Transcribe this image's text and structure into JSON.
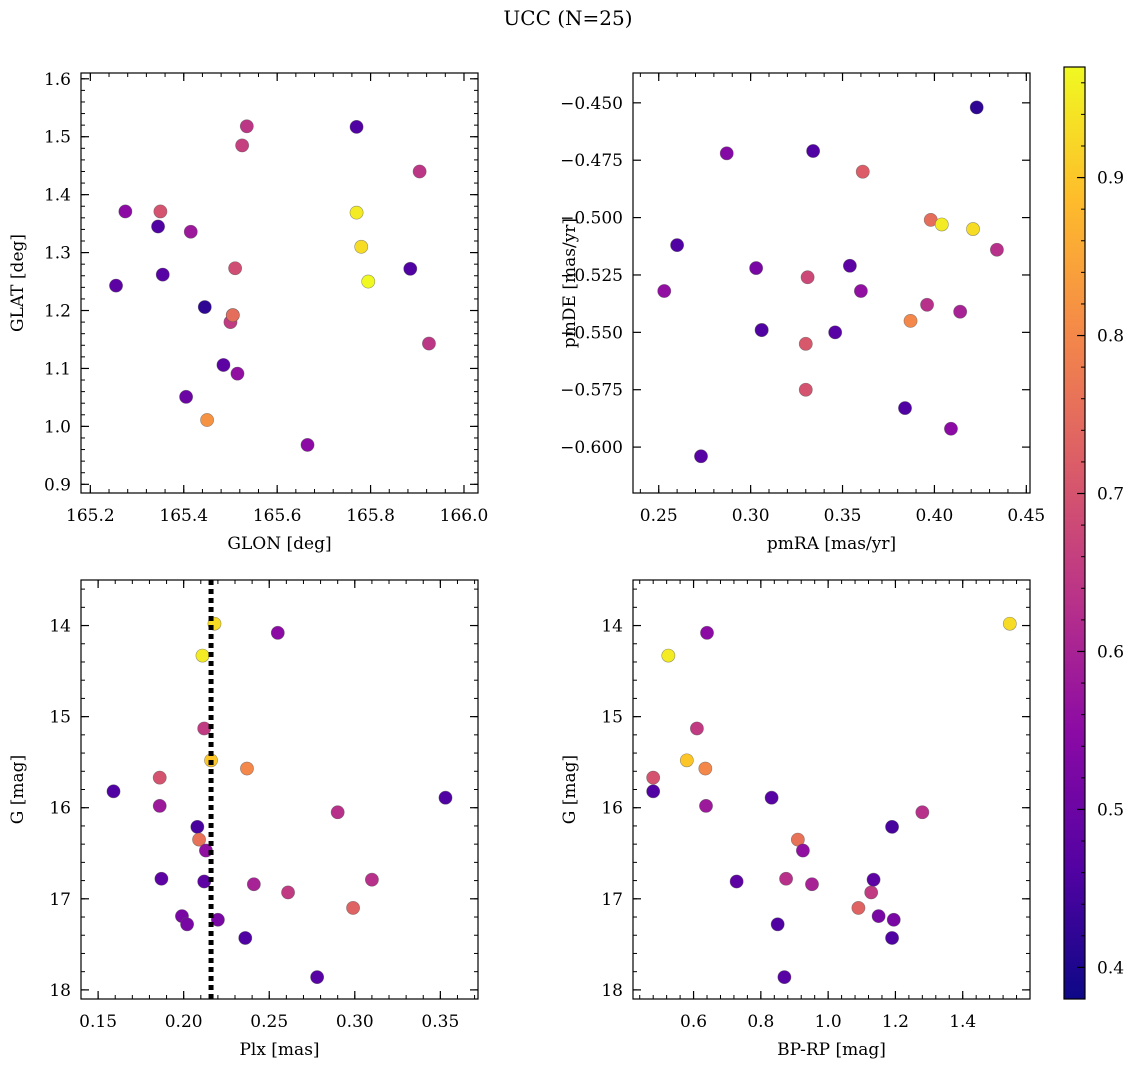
{
  "figure": {
    "title": "UCC (N=25)"
  },
  "colorbar": {
    "colormap": "plasma",
    "range": [
      0.38,
      0.97
    ],
    "ticks": [
      0.4,
      0.5,
      0.6,
      0.7,
      0.8,
      0.9
    ]
  },
  "chart_data": [
    {
      "type": "scatter",
      "xlabel": "GLON [deg]",
      "ylabel": "GLAT [deg]",
      "xlim": [
        165.18,
        166.03
      ],
      "ylim": [
        0.885,
        1.61
      ],
      "xticks": [
        "165.2",
        "165.4",
        "165.6",
        "165.8",
        "166.0"
      ],
      "yticks": [
        "0.9",
        "1.0",
        "1.1",
        "1.2",
        "1.3",
        "1.4",
        "1.5",
        "1.6"
      ],
      "x": [
        165.255,
        165.275,
        165.345,
        165.35,
        165.355,
        165.415,
        165.445,
        165.45,
        165.485,
        165.5,
        165.505,
        165.505,
        165.51,
        165.515,
        165.525,
        165.535,
        165.665,
        165.77,
        165.77,
        165.78,
        165.795,
        165.885,
        165.905,
        165.925,
        165.405
      ],
      "y": [
        1.243,
        1.371,
        1.345,
        1.371,
        1.262,
        1.336,
        1.206,
        1.011,
        1.106,
        1.18,
        1.192,
        1.192,
        1.273,
        1.091,
        1.485,
        1.518,
        0.968,
        1.517,
        1.369,
        1.31,
        1.25,
        1.272,
        1.44,
        1.143,
        1.051
      ],
      "c": [
        0.48,
        0.55,
        0.46,
        0.7,
        0.47,
        0.58,
        0.42,
        0.82,
        0.48,
        0.65,
        0.73,
        0.75,
        0.69,
        0.56,
        0.66,
        0.64,
        0.55,
        0.46,
        0.95,
        0.93,
        0.97,
        0.46,
        0.64,
        0.64,
        0.5
      ]
    },
    {
      "type": "scatter",
      "xlabel": "pmRA [mas/yr]",
      "ylabel": "pmDE [mas/yr]",
      "xlim": [
        0.236,
        0.452
      ],
      "ylim": [
        -0.62,
        -0.437
      ],
      "xticks": [
        "0.25",
        "0.30",
        "0.35",
        "0.40",
        "0.45"
      ],
      "yticks": [
        "−0.450",
        "−0.475",
        "−0.500",
        "−0.525",
        "−0.550",
        "−0.575",
        "−0.600"
      ],
      "x": [
        0.253,
        0.26,
        0.273,
        0.287,
        0.303,
        0.306,
        0.306,
        0.33,
        0.33,
        0.331,
        0.334,
        0.346,
        0.354,
        0.36,
        0.361,
        0.384,
        0.387,
        0.396,
        0.398,
        0.404,
        0.409,
        0.414,
        0.421,
        0.423,
        0.434
      ],
      "y": [
        -0.532,
        -0.512,
        -0.604,
        -0.472,
        -0.522,
        -0.549,
        -0.549,
        -0.575,
        -0.555,
        -0.526,
        -0.471,
        -0.55,
        -0.521,
        -0.532,
        -0.48,
        -0.583,
        -0.545,
        -0.538,
        -0.501,
        -0.503,
        -0.592,
        -0.541,
        -0.505,
        -0.452,
        -0.514
      ],
      "c": [
        0.56,
        0.46,
        0.47,
        0.54,
        0.52,
        0.9,
        0.46,
        0.7,
        0.71,
        0.68,
        0.46,
        0.47,
        0.48,
        0.56,
        0.72,
        0.46,
        0.8,
        0.63,
        0.75,
        0.95,
        0.55,
        0.6,
        0.93,
        0.42,
        0.63
      ]
    },
    {
      "type": "scatter",
      "xlabel": "Plx [mas]",
      "ylabel": "G [mag]",
      "xlim": [
        0.14,
        0.372
      ],
      "ylim": [
        18.1,
        13.5
      ],
      "y_inverted": true,
      "xticks": [
        "0.15",
        "0.20",
        "0.25",
        "0.30",
        "0.35"
      ],
      "yticks": [
        "14",
        "15",
        "16",
        "17",
        "18"
      ],
      "reference_line": {
        "x": 0.216,
        "style": "dotted"
      },
      "x": [
        0.159,
        0.186,
        0.186,
        0.187,
        0.199,
        0.202,
        0.208,
        0.209,
        0.211,
        0.212,
        0.212,
        0.213,
        0.216,
        0.218,
        0.22,
        0.236,
        0.237,
        0.241,
        0.255,
        0.261,
        0.278,
        0.29,
        0.299,
        0.31,
        0.353
      ],
      "y": [
        15.82,
        15.67,
        15.98,
        16.78,
        17.19,
        17.28,
        16.21,
        16.35,
        14.33,
        15.13,
        16.81,
        16.47,
        15.48,
        13.98,
        17.23,
        17.43,
        15.57,
        16.84,
        14.08,
        16.93,
        17.86,
        16.05,
        17.1,
        16.79,
        15.89
      ],
      "c": [
        0.46,
        0.7,
        0.58,
        0.48,
        0.52,
        0.52,
        0.45,
        0.76,
        0.95,
        0.65,
        0.48,
        0.56,
        0.9,
        0.93,
        0.52,
        0.46,
        0.8,
        0.6,
        0.55,
        0.65,
        0.47,
        0.63,
        0.73,
        0.63,
        0.46
      ]
    },
    {
      "type": "scatter",
      "xlabel": "BP-RP [mag]",
      "ylabel": "G [mag]",
      "xlim": [
        0.42,
        1.6
      ],
      "ylim": [
        18.1,
        13.5
      ],
      "y_inverted": true,
      "xticks": [
        "0.6",
        "0.8",
        "1.0",
        "1.2",
        "1.4"
      ],
      "yticks": [
        "14",
        "15",
        "16",
        "17",
        "18"
      ],
      "x": [
        0.48,
        0.48,
        0.525,
        0.58,
        0.61,
        0.635,
        0.637,
        0.64,
        0.728,
        0.832,
        0.85,
        0.87,
        0.875,
        0.91,
        0.925,
        0.952,
        1.09,
        1.128,
        1.135,
        1.15,
        1.19,
        1.19,
        1.195,
        1.28,
        1.54
      ],
      "y": [
        15.67,
        15.82,
        14.33,
        15.48,
        15.13,
        15.57,
        15.98,
        14.08,
        16.81,
        15.89,
        17.28,
        17.86,
        16.78,
        16.35,
        16.47,
        16.84,
        17.1,
        16.93,
        16.79,
        17.19,
        17.43,
        16.21,
        17.23,
        16.05,
        13.98
      ],
      "c": [
        0.7,
        0.46,
        0.95,
        0.9,
        0.65,
        0.8,
        0.58,
        0.55,
        0.48,
        0.47,
        0.46,
        0.47,
        0.63,
        0.76,
        0.56,
        0.6,
        0.73,
        0.65,
        0.48,
        0.52,
        0.46,
        0.45,
        0.52,
        0.63,
        0.93
      ]
    }
  ]
}
